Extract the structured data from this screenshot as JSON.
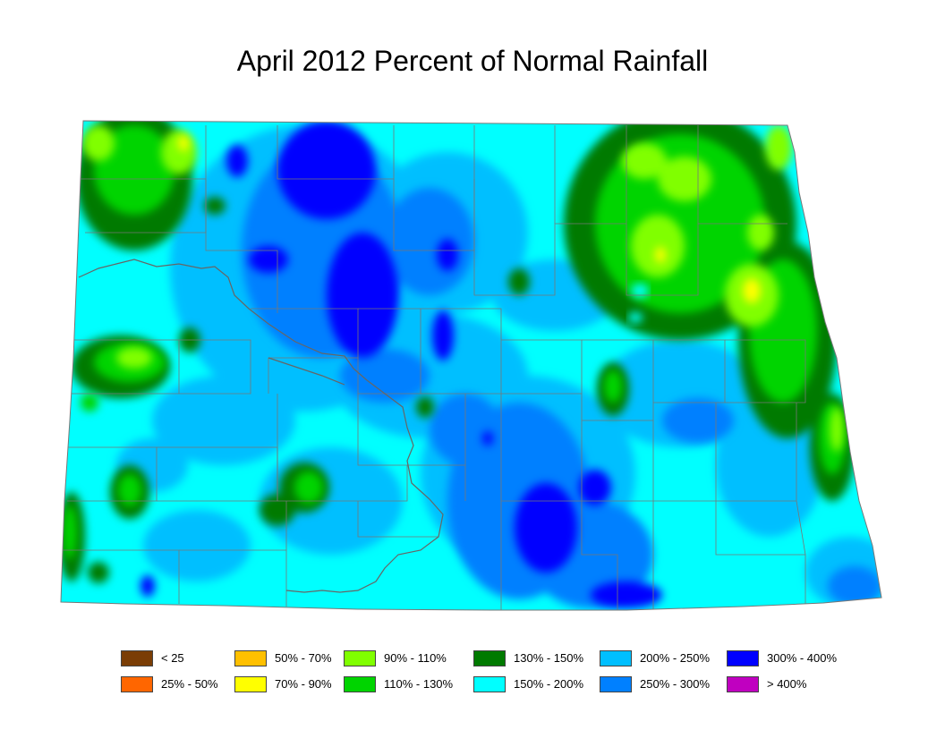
{
  "map": {
    "title": "April 2012 Percent of Normal Rainfall",
    "colors": {
      "lt25": "#7a3d05",
      "p25_50": "#ff6600",
      "p50_70": "#ffc000",
      "p70_90": "#ffff00",
      "p90_110": "#80ff00",
      "p110_130": "#00d400",
      "p130_150": "#007a00",
      "p150_200": "#00ffff",
      "p200_250": "#00bfff",
      "p250_300": "#0080ff",
      "p300_400": "#0000ff",
      "gt400": "#c000c0",
      "county_line": "#777777",
      "river_line": "#666666"
    }
  },
  "legend": [
    {
      "label": "< 25",
      "color": "#7a3d05"
    },
    {
      "label": "25% - 50%",
      "color": "#ff6600"
    },
    {
      "label": "50% - 70%",
      "color": "#ffc000"
    },
    {
      "label": "70% - 90%",
      "color": "#ffff00"
    },
    {
      "label": "90% - 110%",
      "color": "#80ff00"
    },
    {
      "label": "110% - 130%",
      "color": "#00d400"
    },
    {
      "label": "130% - 150%",
      "color": "#007a00"
    },
    {
      "label": "150% - 200%",
      "color": "#00ffff"
    },
    {
      "label": "200% - 250%",
      "color": "#00bfff"
    },
    {
      "label": "250% - 300%",
      "color": "#0080ff"
    },
    {
      "label": "300% - 400%",
      "color": "#0000ff"
    },
    {
      "label": "> 400%",
      "color": "#c000c0"
    }
  ]
}
